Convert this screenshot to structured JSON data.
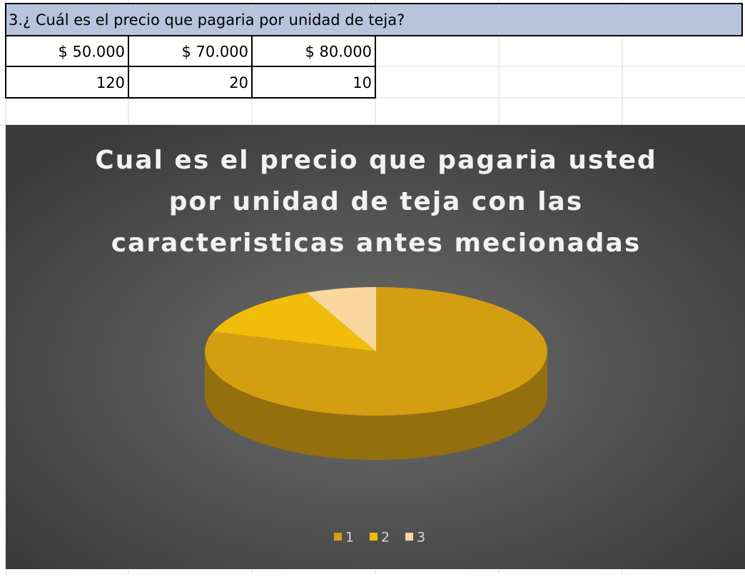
{
  "sheet": {
    "header": "3.¿ Cuál es el precio que pagaria por unidad de teja?",
    "rows": [
      [
        "$ 50.000",
        "$ 70.000",
        "$ 80.000"
      ],
      [
        120,
        20,
        10
      ]
    ]
  },
  "chart_data": {
    "type": "pie",
    "title": [
      "Cual es el precio que pagaria usted",
      "por unidad de teja con las",
      "caracteristicas antes mecionadas"
    ],
    "categories": [
      "1",
      "2",
      "3"
    ],
    "values": [
      120,
      20,
      10
    ],
    "colors": [
      "#d49e12",
      "#f2bc0a",
      "#fbd7a0"
    ],
    "legend": "bottom"
  }
}
